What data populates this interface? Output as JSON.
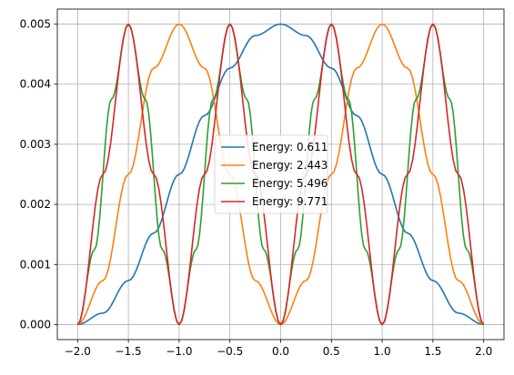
{
  "chart_data": {
    "type": "line",
    "title": "",
    "xlabel": "",
    "ylabel": "",
    "xlim": [
      -2.0,
      2.0
    ],
    "ylim": [
      0.0,
      0.005
    ],
    "grid": true,
    "legend_placement": "center",
    "xticks": [
      -2.0,
      -1.5,
      -1.0,
      -0.5,
      0.0,
      0.5,
      1.0,
      1.5,
      2.0
    ],
    "xtick_labels": [
      "−2.0",
      "−1.5",
      "−1.0",
      "−0.5",
      "0.0",
      "0.5",
      "1.0",
      "1.5",
      "2.0"
    ],
    "yticks": [
      0.0,
      0.001,
      0.002,
      0.003,
      0.004,
      0.005
    ],
    "ytick_labels": [
      "0.000",
      "0.001",
      "0.002",
      "0.003",
      "0.004",
      "0.005"
    ],
    "series": [
      {
        "name": "Energy: 0.611",
        "color": "#1f77b4",
        "x": [
          -2.0,
          -1.75,
          -1.5,
          -1.25,
          -1.0,
          -0.75,
          -0.5,
          -0.25,
          0.0,
          0.25,
          0.5,
          0.75,
          1.0,
          1.25,
          1.5,
          1.75,
          2.0
        ],
        "y": [
          0.0,
          0.000191,
          0.000732,
          0.001522,
          0.0025,
          0.003478,
          0.004268,
          0.004809,
          0.005,
          0.004809,
          0.004268,
          0.003478,
          0.0025,
          0.001522,
          0.000732,
          0.000191,
          0.0
        ]
      },
      {
        "name": "Energy: 2.443",
        "color": "#ff7f0e",
        "x": [
          -2.0,
          -1.75,
          -1.5,
          -1.25,
          -1.0,
          -0.75,
          -0.5,
          -0.25,
          0.0,
          0.25,
          0.5,
          0.75,
          1.0,
          1.25,
          1.5,
          1.75,
          2.0
        ],
        "y": [
          0.0,
          0.000732,
          0.0025,
          0.004268,
          0.005,
          0.004268,
          0.0025,
          0.000732,
          0.0,
          0.000732,
          0.0025,
          0.004268,
          0.005,
          0.004268,
          0.0025,
          0.000732,
          0.0
        ]
      },
      {
        "name": "Energy: 5.496",
        "color": "#2ca02c",
        "x": [
          -2.0,
          -1.833,
          -1.667,
          -1.5,
          -1.333,
          -1.167,
          -1.0,
          -0.833,
          -0.667,
          -0.5,
          -0.333,
          -0.167,
          0.0,
          0.167,
          0.333,
          0.5,
          0.667,
          0.833,
          1.0,
          1.167,
          1.333,
          1.5,
          1.667,
          1.833,
          2.0
        ],
        "y": [
          0.0,
          0.00125,
          0.00375,
          0.005,
          0.00375,
          0.00125,
          0.0,
          0.00125,
          0.00375,
          0.005,
          0.00375,
          0.00125,
          0.0,
          0.00125,
          0.00375,
          0.005,
          0.00375,
          0.00125,
          0.0,
          0.00125,
          0.00375,
          0.005,
          0.00375,
          0.00125,
          0.0
        ]
      },
      {
        "name": "Energy: 9.771",
        "color": "#d62728",
        "x": [
          -2.0,
          -1.75,
          -1.5,
          -1.25,
          -1.0,
          -0.75,
          -0.5,
          -0.25,
          0.0,
          0.25,
          0.5,
          0.75,
          1.0,
          1.25,
          1.5,
          1.75,
          2.0
        ],
        "y": [
          0.0,
          0.0025,
          0.005,
          0.0025,
          0.0,
          0.0025,
          0.005,
          0.0025,
          0.0,
          0.0025,
          0.005,
          0.0025,
          0.0,
          0.0025,
          0.005,
          0.0025,
          0.0
        ]
      }
    ]
  }
}
